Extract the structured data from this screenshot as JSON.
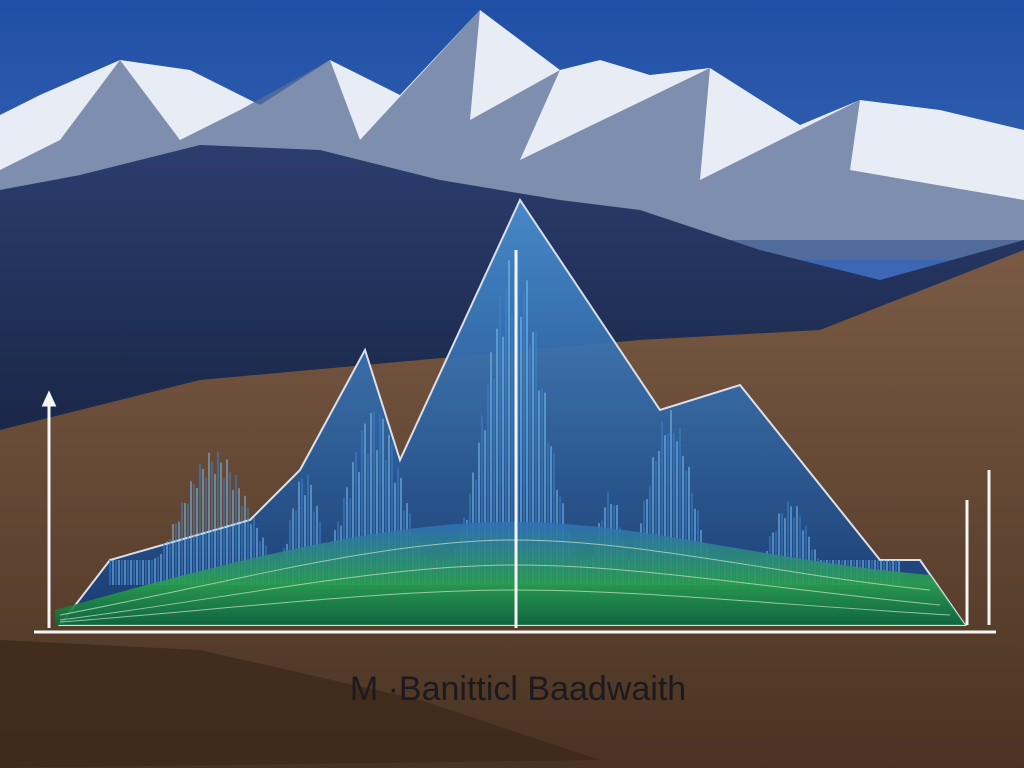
{
  "caption": "M ·Banitticl Baadwaith"
}
